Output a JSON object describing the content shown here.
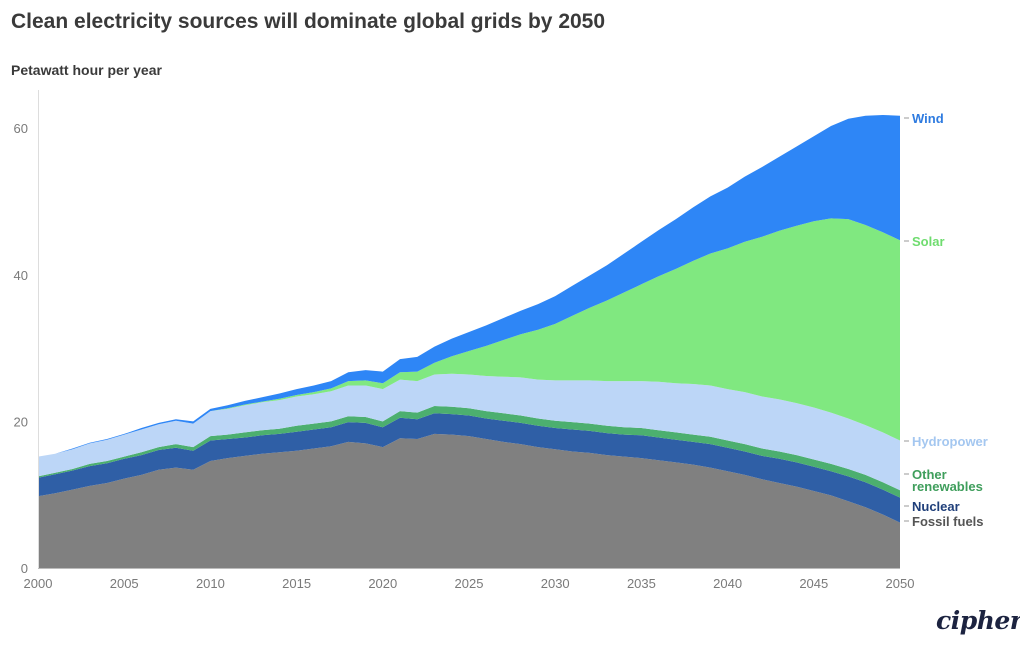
{
  "header": {
    "title": "Clean electricity sources will dominate global grids by 2050",
    "unit_label": "Petawatt hour per year"
  },
  "brand": {
    "logo_text": "cipher"
  },
  "chart_data": {
    "type": "area",
    "stacked": true,
    "title": "Clean electricity sources will dominate global grids by 2050",
    "ylabel": "Petawatt hour per year",
    "xlabel": "",
    "xlim": [
      2000,
      2050
    ],
    "ylim": [
      0,
      65
    ],
    "x_ticks": [
      2000,
      2005,
      2010,
      2015,
      2020,
      2025,
      2030,
      2035,
      2040,
      2045,
      2050
    ],
    "y_ticks": [
      0,
      20,
      40,
      60
    ],
    "grid": false,
    "legend": "direct labels at right end of areas",
    "x": [
      2000,
      2001,
      2002,
      2003,
      2004,
      2005,
      2006,
      2007,
      2008,
      2009,
      2010,
      2011,
      2012,
      2013,
      2014,
      2015,
      2016,
      2017,
      2018,
      2019,
      2020,
      2021,
      2022,
      2023,
      2024,
      2025,
      2026,
      2027,
      2028,
      2029,
      2030,
      2031,
      2032,
      2033,
      2034,
      2035,
      2036,
      2037,
      2038,
      2039,
      2040,
      2041,
      2042,
      2043,
      2044,
      2045,
      2046,
      2047,
      2048,
      2049,
      2050
    ],
    "series": [
      {
        "name": "Fossil fuels",
        "color": "#808080",
        "values": [
          9.8,
          10.2,
          10.7,
          11.2,
          11.6,
          12.2,
          12.7,
          13.4,
          13.7,
          13.4,
          14.6,
          15.0,
          15.3,
          15.6,
          15.8,
          16.0,
          16.3,
          16.6,
          17.2,
          17.0,
          16.5,
          17.7,
          17.6,
          18.3,
          18.2,
          18.0,
          17.6,
          17.2,
          16.9,
          16.5,
          16.2,
          15.9,
          15.7,
          15.4,
          15.2,
          15.0,
          14.7,
          14.4,
          14.1,
          13.7,
          13.2,
          12.7,
          12.1,
          11.6,
          11.1,
          10.5,
          9.9,
          9.1,
          8.3,
          7.3,
          6.2
        ]
      },
      {
        "name": "Nuclear",
        "color": "#2f5fa6",
        "values": [
          2.5,
          2.6,
          2.6,
          2.7,
          2.7,
          2.7,
          2.7,
          2.7,
          2.7,
          2.6,
          2.8,
          2.6,
          2.5,
          2.5,
          2.5,
          2.6,
          2.6,
          2.6,
          2.7,
          2.8,
          2.7,
          2.8,
          2.7,
          2.8,
          2.8,
          2.8,
          2.8,
          2.9,
          2.9,
          2.9,
          2.9,
          3.0,
          3.0,
          3.0,
          3.0,
          3.1,
          3.1,
          3.1,
          3.1,
          3.2,
          3.2,
          3.2,
          3.2,
          3.3,
          3.3,
          3.3,
          3.3,
          3.4,
          3.4,
          3.4,
          3.4
        ]
      },
      {
        "name": "Other renewables",
        "color": "#4caf6f",
        "values": [
          0.2,
          0.2,
          0.2,
          0.3,
          0.3,
          0.3,
          0.4,
          0.4,
          0.5,
          0.5,
          0.6,
          0.6,
          0.7,
          0.7,
          0.7,
          0.8,
          0.8,
          0.8,
          0.8,
          0.8,
          0.8,
          0.9,
          0.9,
          1.0,
          1.0,
          1.0,
          1.0,
          1.0,
          1.0,
          1.0,
          1.0,
          1.0,
          1.0,
          1.0,
          1.0,
          1.0,
          1.0,
          1.0,
          1.0,
          1.0,
          1.0,
          1.0,
          1.0,
          1.0,
          1.0,
          1.0,
          1.0,
          1.0,
          1.0,
          1.0,
          1.0
        ]
      },
      {
        "name": "Hydropower",
        "color": "#bcd6f7",
        "values": [
          2.7,
          2.6,
          2.7,
          2.8,
          2.9,
          3.0,
          3.1,
          3.1,
          3.2,
          3.2,
          3.4,
          3.5,
          3.7,
          3.8,
          3.9,
          4.0,
          4.0,
          4.1,
          4.2,
          4.3,
          4.4,
          4.3,
          4.3,
          4.3,
          4.5,
          4.6,
          4.8,
          5.0,
          5.2,
          5.3,
          5.5,
          5.7,
          5.9,
          6.1,
          6.3,
          6.4,
          6.6,
          6.7,
          6.9,
          7.0,
          7.0,
          7.1,
          7.1,
          7.1,
          7.1,
          7.1,
          7.0,
          6.9,
          6.8,
          6.8,
          6.8
        ]
      },
      {
        "name": "Solar",
        "color": "#80e880",
        "values": [
          0.0,
          0.0,
          0.0,
          0.0,
          0.0,
          0.0,
          0.0,
          0.0,
          0.0,
          0.0,
          0.0,
          0.1,
          0.1,
          0.1,
          0.2,
          0.2,
          0.3,
          0.4,
          0.6,
          0.7,
          0.8,
          1.0,
          1.3,
          1.6,
          2.4,
          3.2,
          4.1,
          5.0,
          5.9,
          6.8,
          7.7,
          8.8,
          9.9,
          11.0,
          12.1,
          13.2,
          14.4,
          15.6,
          16.8,
          18.0,
          19.2,
          20.5,
          21.8,
          23.0,
          24.2,
          25.4,
          26.5,
          27.2,
          27.3,
          27.3,
          27.3
        ]
      },
      {
        "name": "Wind",
        "color": "#2e86f6",
        "values": [
          0.0,
          0.0,
          0.1,
          0.1,
          0.1,
          0.1,
          0.2,
          0.2,
          0.2,
          0.3,
          0.3,
          0.4,
          0.5,
          0.6,
          0.7,
          0.8,
          0.9,
          1.0,
          1.2,
          1.4,
          1.6,
          1.8,
          2.0,
          2.2,
          2.4,
          2.6,
          2.8,
          3.0,
          3.2,
          3.5,
          3.8,
          4.1,
          4.4,
          4.8,
          5.3,
          5.8,
          6.3,
          6.8,
          7.3,
          7.8,
          8.3,
          8.9,
          9.5,
          10.1,
          10.8,
          11.6,
          12.6,
          13.7,
          14.9,
          16.0,
          17.0
        ]
      }
    ]
  }
}
